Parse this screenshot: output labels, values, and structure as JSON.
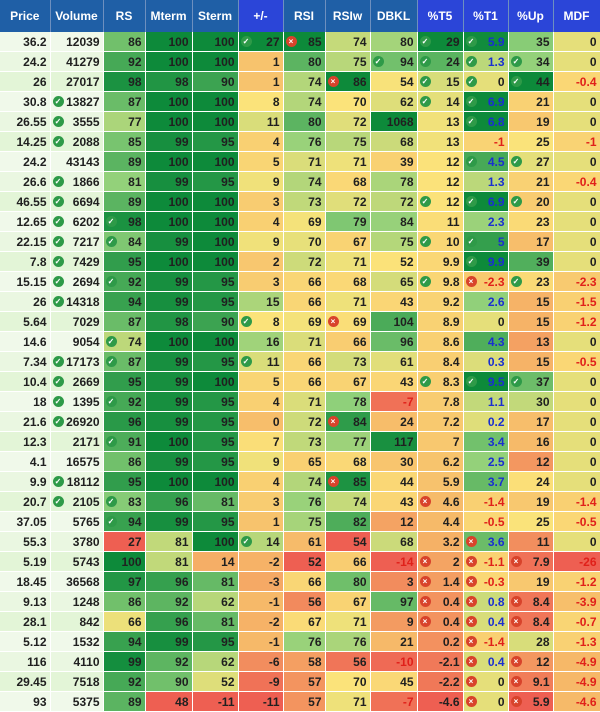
{
  "columns": [
    "Price",
    "Volume",
    "RS",
    "Mterm",
    "Sterm",
    "+/-",
    "RSI",
    "RSIw",
    "DBKL",
    "%T5",
    "%T1",
    "%Up",
    "MDF"
  ],
  "highlighted_columns": [
    5,
    9,
    10,
    11,
    12
  ],
  "rows": [
    [
      "36.2",
      "12039",
      "86",
      "100",
      "100",
      "27",
      "85",
      "74",
      "80",
      "29",
      "5.9",
      "35",
      "0"
    ],
    [
      "24.2",
      "41279",
      "92",
      "100",
      "100",
      "1",
      "80",
      "75",
      "94",
      "24",
      "1.3",
      "34",
      "0"
    ],
    [
      "26",
      "27017",
      "98",
      "98",
      "90",
      "1",
      "74",
      "86",
      "54",
      "15",
      "0",
      "44",
      "-0.4"
    ],
    [
      "30.8",
      "13827",
      "87",
      "100",
      "100",
      "8",
      "74",
      "70",
      "62",
      "14",
      "6.9",
      "21",
      "0"
    ],
    [
      "26.55",
      "3555",
      "77",
      "100",
      "100",
      "11",
      "80",
      "72",
      "1068",
      "13",
      "6.8",
      "19",
      "0"
    ],
    [
      "14.25",
      "2088",
      "85",
      "99",
      "95",
      "4",
      "76",
      "75",
      "68",
      "13",
      "-1",
      "25",
      "-1"
    ],
    [
      "24.2",
      "43143",
      "89",
      "100",
      "100",
      "5",
      "71",
      "71",
      "39",
      "12",
      "4.5",
      "27",
      "0"
    ],
    [
      "26.6",
      "1866",
      "81",
      "99",
      "95",
      "9",
      "74",
      "68",
      "78",
      "12",
      "1.3",
      "21",
      "-0.4"
    ],
    [
      "46.55",
      "6694",
      "89",
      "100",
      "100",
      "3",
      "73",
      "72",
      "72",
      "12",
      "6.9",
      "20",
      "0"
    ],
    [
      "12.65",
      "6202",
      "98",
      "100",
      "100",
      "4",
      "69",
      "79",
      "84",
      "11",
      "2.3",
      "23",
      "0"
    ],
    [
      "22.15",
      "7217",
      "84",
      "99",
      "100",
      "9",
      "70",
      "67",
      "75",
      "10",
      "5",
      "17",
      "0"
    ],
    [
      "7.8",
      "7429",
      "95",
      "100",
      "100",
      "2",
      "72",
      "71",
      "52",
      "9.9",
      "9.9",
      "39",
      "0"
    ],
    [
      "15.15",
      "2694",
      "92",
      "99",
      "95",
      "3",
      "66",
      "68",
      "65",
      "9.8",
      "-2.3",
      "23",
      "-2.3"
    ],
    [
      "26",
      "14318",
      "94",
      "99",
      "95",
      "15",
      "66",
      "71",
      "43",
      "9.2",
      "2.6",
      "15",
      "-1.5"
    ],
    [
      "5.64",
      "7029",
      "87",
      "98",
      "90",
      "8",
      "69",
      "69",
      "104",
      "8.9",
      "0",
      "15",
      "-1.2"
    ],
    [
      "14.6",
      "9054",
      "74",
      "100",
      "100",
      "16",
      "71",
      "66",
      "96",
      "8.6",
      "4.3",
      "13",
      "0"
    ],
    [
      "7.34",
      "17173",
      "87",
      "99",
      "95",
      "11",
      "66",
      "73",
      "61",
      "8.4",
      "0.3",
      "15",
      "-0.5"
    ],
    [
      "10.4",
      "2669",
      "95",
      "99",
      "100",
      "5",
      "66",
      "67",
      "43",
      "8.3",
      "9.5",
      "37",
      "0"
    ],
    [
      "18",
      "1395",
      "92",
      "99",
      "95",
      "4",
      "71",
      "78",
      "-7",
      "7.8",
      "1.1",
      "30",
      "0"
    ],
    [
      "21.6",
      "26920",
      "96",
      "99",
      "95",
      "0",
      "72",
      "84",
      "24",
      "7.2",
      "0.2",
      "17",
      "0"
    ],
    [
      "12.3",
      "2171",
      "91",
      "100",
      "95",
      "7",
      "73",
      "77",
      "117",
      "7",
      "3.4",
      "16",
      "0"
    ],
    [
      "4.1",
      "16575",
      "86",
      "99",
      "95",
      "9",
      "65",
      "68",
      "30",
      "6.2",
      "2.5",
      "12",
      "0"
    ],
    [
      "9.9",
      "18112",
      "95",
      "100",
      "100",
      "4",
      "74",
      "85",
      "44",
      "5.9",
      "3.7",
      "24",
      "0"
    ],
    [
      "20.7",
      "2105",
      "83",
      "96",
      "81",
      "3",
      "76",
      "74",
      "43",
      "4.6",
      "-1.4",
      "19",
      "-1.4"
    ],
    [
      "37.05",
      "5765",
      "94",
      "99",
      "95",
      "1",
      "75",
      "82",
      "12",
      "4.4",
      "-0.5",
      "25",
      "-0.5"
    ],
    [
      "55.3",
      "3780",
      "27",
      "81",
      "100",
      "14",
      "61",
      "54",
      "68",
      "3.2",
      "3.6",
      "11",
      "0"
    ],
    [
      "5.19",
      "5743",
      "100",
      "81",
      "14",
      "-2",
      "52",
      "66",
      "-14",
      "2",
      "-1.1",
      "7.9",
      "-26"
    ],
    [
      "18.45",
      "36568",
      "97",
      "96",
      "81",
      "-3",
      "66",
      "80",
      "3",
      "1.4",
      "-0.3",
      "19",
      "-1.2"
    ],
    [
      "9.13",
      "1248",
      "86",
      "92",
      "62",
      "-1",
      "56",
      "67",
      "97",
      "0.4",
      "0.8",
      "8.4",
      "-3.9"
    ],
    [
      "28.1",
      "842",
      "66",
      "96",
      "81",
      "-2",
      "67",
      "71",
      "9",
      "0.4",
      "0.4",
      "8.4",
      "-0.7"
    ],
    [
      "5.12",
      "1532",
      "94",
      "99",
      "95",
      "-1",
      "76",
      "76",
      "21",
      "0.2",
      "-1.4",
      "28",
      "-1.3"
    ],
    [
      "116",
      "4110",
      "99",
      "92",
      "62",
      "-6",
      "58",
      "56",
      "-10",
      "-2.1",
      "0.4",
      "12",
      "-4.9"
    ],
    [
      "29.45",
      "7518",
      "92",
      "90",
      "52",
      "-9",
      "57",
      "70",
      "45",
      "-2.2",
      "0",
      "9.1",
      "-4.9"
    ],
    [
      "93",
      "5375",
      "89",
      "48",
      "-11",
      "-11",
      "57",
      "71",
      "-7",
      "-4.6",
      "0",
      "5.9",
      "-4.6"
    ]
  ],
  "cell_styles": {
    "check_icon_cells": [
      "3,1",
      "4,1",
      "5,1",
      "7,1",
      "8,1",
      "9,1",
      "10,1",
      "11,1",
      "12,1",
      "13,1",
      "16,1",
      "17,1",
      "18,1",
      "19,1",
      "22,1",
      "23,1",
      "9,2",
      "10,2",
      "12,2",
      "15,2",
      "16,2",
      "18,2",
      "20,2",
      "23,2",
      "24,2",
      "0,5",
      "14,5",
      "16,5",
      "25,5",
      "0,9",
      "1,9",
      "2,9",
      "3,9",
      "8,9",
      "10,9",
      "12,9",
      "17,9",
      "17,10",
      "0,10",
      "1,10",
      "2,10",
      "3,10",
      "4,10",
      "6,10",
      "8,10",
      "10,10",
      "11,10",
      "1,11",
      "2,11",
      "6,11",
      "8,11",
      "12,11",
      "17,11",
      "1,8"
    ],
    "x_icon_cells": [
      "0,6",
      "2,7",
      "14,7",
      "19,7",
      "22,7",
      "23,9",
      "12,10",
      "25,10",
      "26,10",
      "27,10",
      "28,10",
      "29,10",
      "30,10",
      "31,10",
      "32,10",
      "33,10",
      "26,9",
      "27,9",
      "28,9",
      "29,9",
      "26,11",
      "28,11",
      "29,11",
      "31,11",
      "32,11",
      "33,11"
    ]
  },
  "colors": {
    "header_bg": "#1f5fa6",
    "header_highlight_bg": "#2b45d8",
    "dark_green": "#0d8a3a",
    "light_green": "#8fd07a",
    "yellow": "#fbe37a",
    "orange": "#f6b768",
    "red": "#ee5f52",
    "blue_text": "#1a2fd0",
    "negative_text": "#e0201a"
  }
}
